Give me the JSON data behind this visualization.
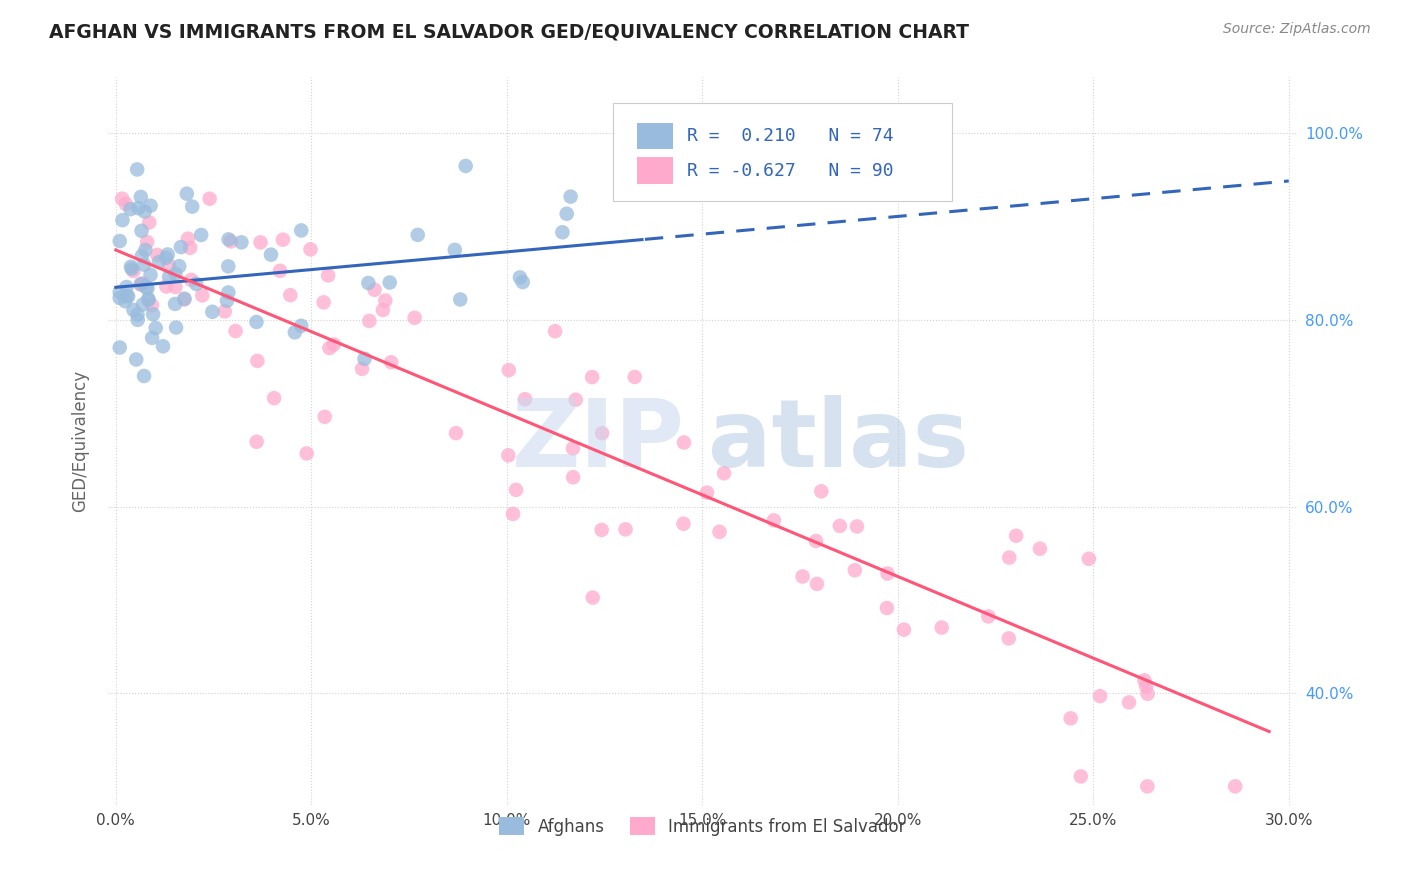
{
  "title": "AFGHAN VS IMMIGRANTS FROM EL SALVADOR GED/EQUIVALENCY CORRELATION CHART",
  "source": "Source: ZipAtlas.com",
  "ylabel": "GED/Equivalency",
  "xlim": [
    -0.002,
    0.302
  ],
  "ylim": [
    0.28,
    1.06
  ],
  "xtick_positions": [
    0.0,
    0.05,
    0.1,
    0.15,
    0.2,
    0.25,
    0.3
  ],
  "xtick_labels": [
    "0.0%",
    "5.0%",
    "10.0%",
    "15.0%",
    "20.0%",
    "25.0%",
    "30.0%"
  ],
  "ytick_positions": [
    0.4,
    0.6,
    0.8,
    1.0
  ],
  "ytick_labels": [
    "40.0%",
    "60.0%",
    "80.0%",
    "100.0%"
  ],
  "legend": {
    "afghans_R": "0.210",
    "afghans_N": "74",
    "salvador_R": "-0.627",
    "salvador_N": "90"
  },
  "blue_scatter_color": "#99BBDD",
  "pink_scatter_color": "#FFAACC",
  "line_blue": "#3366BB",
  "line_pink": "#FF5577",
  "blue_line_solid_end": 0.135,
  "blue_line_full_end": 0.3,
  "pink_line_start": 0.0,
  "pink_line_end": 0.295,
  "blue_intercept": 0.835,
  "blue_slope": 0.38,
  "pink_intercept": 0.875,
  "pink_slope": -1.75,
  "watermark_zip_color": "#C8D8EE",
  "watermark_atlas_color": "#A8C0E0",
  "grid_color": "#CCCCCC",
  "title_color": "#222222",
  "source_color": "#888888",
  "ylabel_color": "#666666",
  "ytick_color": "#4499FF",
  "xtick_color": "#444444",
  "legend_border_color": "#CCCCCC"
}
